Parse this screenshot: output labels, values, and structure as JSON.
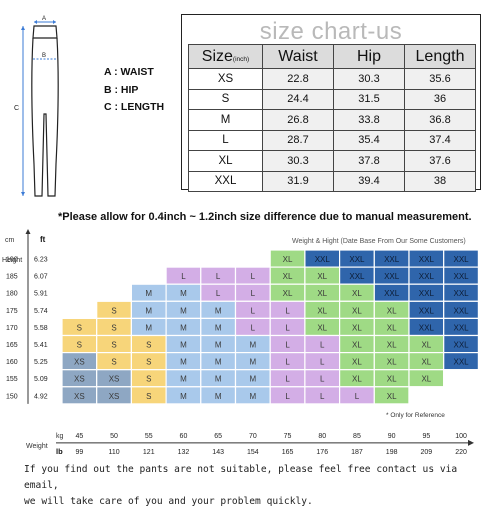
{
  "legend": {
    "waist": "A : WAIST",
    "hip": "B : HIP",
    "length": "C : LENGTH",
    "letters": [
      "A",
      "B",
      "C"
    ]
  },
  "size_chart": {
    "title": "size chart-us",
    "headers": [
      "Size",
      "(inch)",
      "Waist",
      "Hip",
      "Length"
    ],
    "rows": [
      [
        "XS",
        "22.8",
        "30.3",
        "35.6"
      ],
      [
        "S",
        "24.4",
        "31.5",
        "36"
      ],
      [
        "M",
        "26.8",
        "33.8",
        "36.8"
      ],
      [
        "L",
        "28.7",
        "35.4",
        "37.4"
      ],
      [
        "XL",
        "30.3",
        "37.8",
        "37.6"
      ],
      [
        "XXL",
        "31.9",
        "39.4",
        "38"
      ]
    ]
  },
  "note": "*Please allow for 0.4inch ~ 1.2inch size difference due to manual measurement.",
  "weight_height": {
    "caption": "Weight & Hight (Date Base From Our Some Customers)",
    "height_label": "Height",
    "height_units": [
      "cm",
      "ft"
    ],
    "heights_cm": [
      "190",
      "185",
      "180",
      "175",
      "170",
      "165",
      "160",
      "155",
      "150"
    ],
    "heights_ft": [
      "6.23",
      "6.07",
      "5.91",
      "5.74",
      "5.58",
      "5.41",
      "5.25",
      "5.09",
      "4.92"
    ],
    "weight_label": "Weight",
    "weight_units": [
      "kg",
      "lb"
    ],
    "weights_kg": [
      "45",
      "50",
      "55",
      "60",
      "65",
      "70",
      "75",
      "80",
      "85",
      "90",
      "95",
      "100"
    ],
    "weights_lb": [
      "99",
      "110",
      "121",
      "132",
      "143",
      "154",
      "165",
      "176",
      "187",
      "198",
      "209",
      "220"
    ],
    "grid": [
      [
        "",
        "",
        "",
        "",
        "",
        "",
        "XL",
        "XXL",
        "XXL",
        "XXL",
        "XXL",
        "XXL"
      ],
      [
        "",
        "",
        "",
        "L",
        "L",
        "L",
        "XL",
        "XL",
        "XXL",
        "XXL",
        "XXL",
        "XXL"
      ],
      [
        "",
        "",
        "M",
        "M",
        "L",
        "L",
        "XL",
        "XL",
        "XL",
        "XXL",
        "XXL",
        "XXL"
      ],
      [
        "",
        "S",
        "M",
        "M",
        "M",
        "L",
        "L",
        "XL",
        "XL",
        "XL",
        "XXL",
        "XXL"
      ],
      [
        "S",
        "S",
        "M",
        "M",
        "M",
        "L",
        "L",
        "XL",
        "XL",
        "XL",
        "XXL",
        "XXL"
      ],
      [
        "S",
        "S",
        "S",
        "M",
        "M",
        "M",
        "L",
        "L",
        "XL",
        "XL",
        "XL",
        "XXL"
      ],
      [
        "XS",
        "S",
        "S",
        "M",
        "M",
        "M",
        "L",
        "L",
        "XL",
        "XL",
        "XL",
        "XXL"
      ],
      [
        "XS",
        "XS",
        "S",
        "M",
        "M",
        "M",
        "L",
        "L",
        "XL",
        "XL",
        "XL",
        ""
      ],
      [
        "XS",
        "XS",
        "S",
        "M",
        "M",
        "M",
        "L",
        "L",
        "L",
        "XL",
        "",
        ""
      ]
    ],
    "colors": {
      "XS": "#8ea7c3",
      "S": "#f7d57a",
      "M": "#a9c9eb",
      "L": "#d3aee6",
      "XL": "#9fda85",
      "XXL": "#2f65ab"
    },
    "reference_note": "* Only for Reference"
  },
  "footer": {
    "line1": "If you find out the pants are not suitable, please feel free contact us via email,",
    "line2": "we will take care of you and your problem quickly."
  }
}
